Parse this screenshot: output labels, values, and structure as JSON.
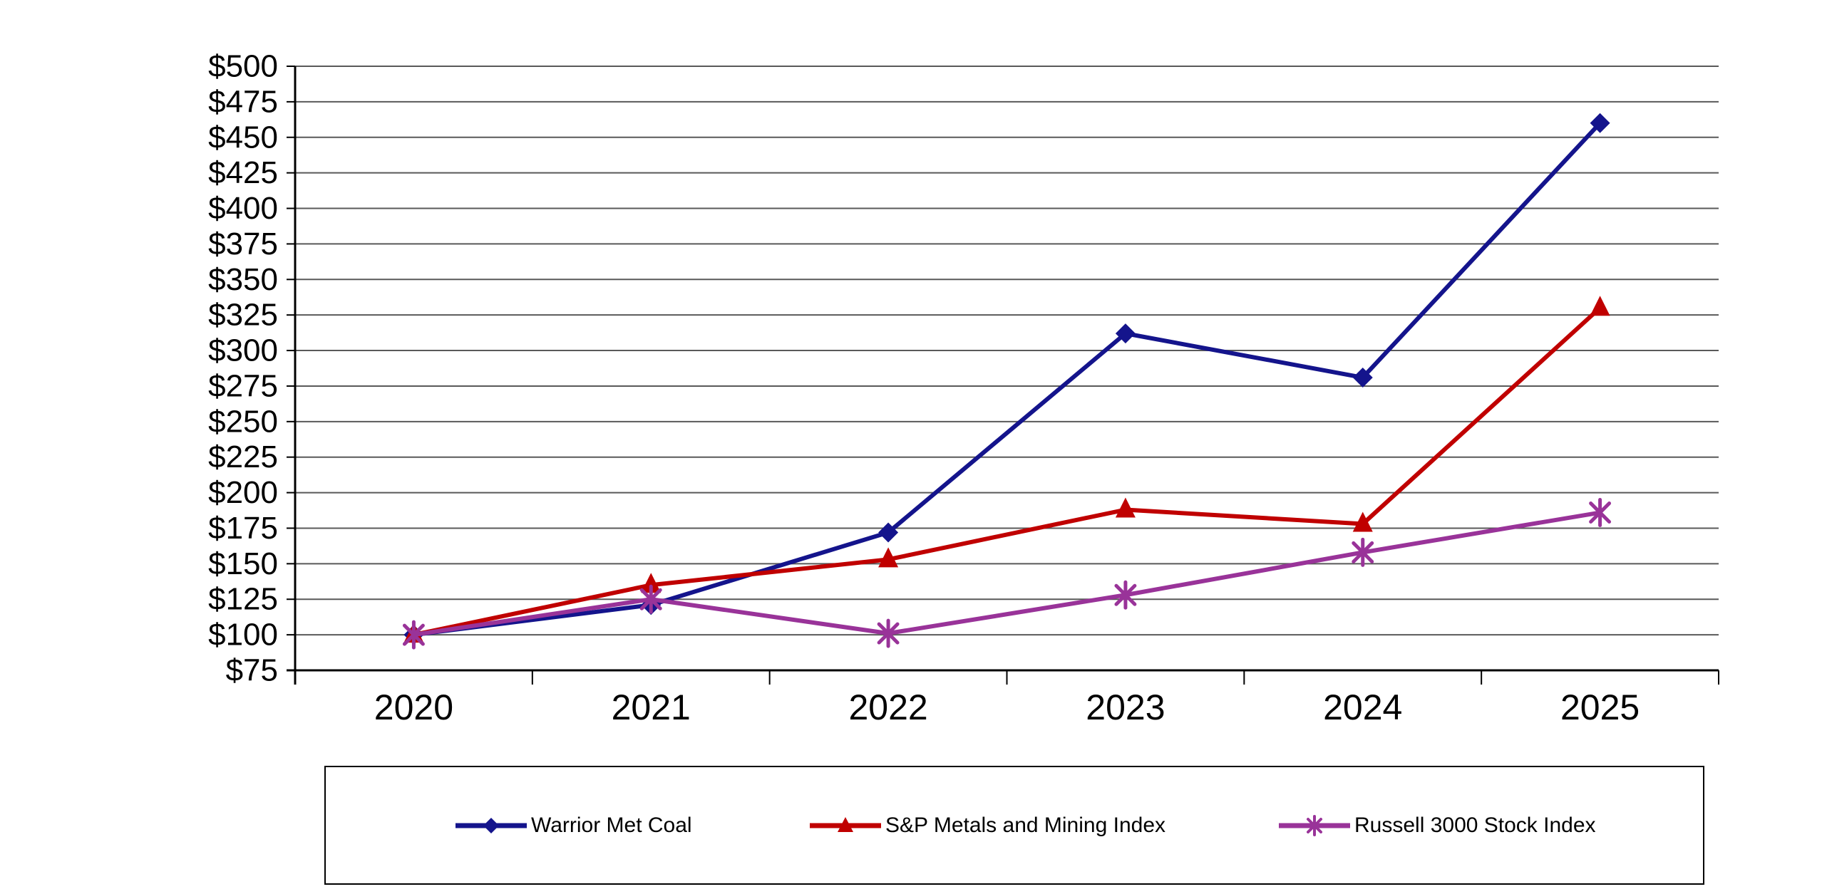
{
  "chart_data": {
    "type": "line",
    "title": "",
    "categories": [
      "2020",
      "2021",
      "2022",
      "2023",
      "2024",
      "2025"
    ],
    "series": [
      {
        "name": "Warrior Met Coal",
        "marker": "diamond",
        "color": "#14148C",
        "values": [
          100,
          121,
          172,
          312,
          281,
          460
        ]
      },
      {
        "name": "S&P Metals and Mining Index",
        "marker": "triangle",
        "color": "#C00000",
        "values": [
          100,
          135,
          153,
          188,
          178,
          330
        ]
      },
      {
        "name": "Russell 3000 Stock Index",
        "marker": "asterisk",
        "color": "#993399",
        "values": [
          100,
          125,
          101,
          128,
          158,
          186
        ]
      }
    ],
    "xlabel": "",
    "ylabel": "",
    "y_axis": {
      "min": 75,
      "max": 500,
      "step": 25,
      "tick_prefix": "$"
    },
    "y_tick_labels": [
      "$500",
      "$475",
      "$450",
      "$425",
      "$400",
      "$375",
      "$350",
      "$325",
      "$300",
      "$275",
      "$250",
      "$225",
      "$200",
      "$175",
      "$150",
      "$125",
      "$100",
      "$75"
    ],
    "ylim": [
      75,
      500
    ],
    "grid": true,
    "legend_position": "bottom",
    "axis_color": "#000000",
    "grid_color": "#595959"
  }
}
